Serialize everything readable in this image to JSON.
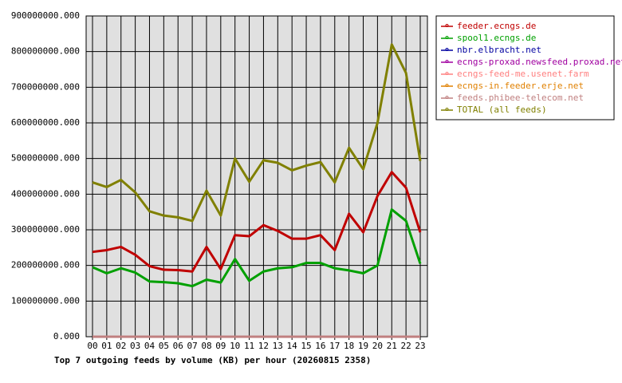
{
  "chart_data": {
    "type": "line",
    "title": "Top 7 outgoing feeds by volume (KB) per hour (20260815 2358)",
    "categories": [
      "00",
      "01",
      "02",
      "03",
      "04",
      "05",
      "06",
      "07",
      "08",
      "09",
      "10",
      "11",
      "12",
      "13",
      "14",
      "15",
      "16",
      "17",
      "18",
      "19",
      "20",
      "21",
      "22",
      "23"
    ],
    "series": [
      {
        "name": "feeder.ecngs.de",
        "color": "#c00000",
        "values": [
          238000000,
          243000000,
          252000000,
          230000000,
          198000000,
          188000000,
          187000000,
          183000000,
          252000000,
          190000000,
          285000000,
          282000000,
          313000000,
          297000000,
          275000000,
          275000000,
          285000000,
          243000000,
          345000000,
          293000000,
          395000000,
          462000000,
          418000000,
          293000000
        ]
      },
      {
        "name": "spool1.ecngs.de",
        "color": "#00a000",
        "values": [
          195000000,
          178000000,
          192000000,
          180000000,
          155000000,
          153000000,
          150000000,
          142000000,
          160000000,
          152000000,
          218000000,
          157000000,
          183000000,
          192000000,
          195000000,
          207000000,
          207000000,
          192000000,
          186000000,
          178000000,
          200000000,
          357000000,
          325000000,
          205000000
        ]
      },
      {
        "name": "nbr.elbracht.net",
        "color": "#0000a0",
        "values": [
          0,
          0,
          0,
          0,
          0,
          0,
          0,
          0,
          0,
          0,
          0,
          0,
          0,
          0,
          0,
          0,
          0,
          0,
          0,
          0,
          0,
          0,
          0,
          0
        ]
      },
      {
        "name": "ecngs-proxad.newsfeed.proxad.net",
        "color": "#a000a0",
        "values": [
          0,
          0,
          0,
          0,
          0,
          0,
          0,
          0,
          0,
          0,
          0,
          0,
          0,
          0,
          0,
          0,
          0,
          0,
          0,
          0,
          0,
          0,
          0,
          0
        ]
      },
      {
        "name": "ecngs-feed-me.usenet.farm",
        "color": "#ff8080",
        "values": [
          0,
          0,
          0,
          0,
          0,
          0,
          0,
          0,
          0,
          0,
          0,
          0,
          0,
          0,
          0,
          0,
          0,
          0,
          0,
          0,
          0,
          0,
          0,
          0
        ]
      },
      {
        "name": "ecngs-in.feeder.erje.net",
        "color": "#e08000",
        "values": [
          0,
          0,
          0,
          0,
          0,
          0,
          0,
          0,
          0,
          0,
          0,
          0,
          0,
          0,
          0,
          0,
          0,
          0,
          0,
          0,
          0,
          0,
          0,
          0
        ]
      },
      {
        "name": "feeds.phibee-telecom.net",
        "color": "#c08080",
        "values": [
          0,
          0,
          0,
          0,
          0,
          0,
          0,
          0,
          0,
          0,
          0,
          0,
          0,
          0,
          0,
          0,
          0,
          0,
          0,
          0,
          0,
          0,
          0,
          0
        ]
      },
      {
        "name": "TOTAL (all feeds)",
        "color": "#808000",
        "values": [
          433000000,
          420000000,
          440000000,
          405000000,
          352000000,
          340000000,
          335000000,
          325000000,
          410000000,
          340000000,
          500000000,
          435000000,
          495000000,
          488000000,
          467000000,
          480000000,
          490000000,
          433000000,
          530000000,
          470000000,
          600000000,
          820000000,
          740000000,
          493000000
        ]
      }
    ],
    "ylim": [
      0,
      900000000
    ],
    "yticks": [
      {
        "value": 0,
        "label": "0.000"
      },
      {
        "value": 100000000,
        "label": "100000000.000"
      },
      {
        "value": 200000000,
        "label": "200000000.000"
      },
      {
        "value": 300000000,
        "label": "300000000.000"
      },
      {
        "value": 400000000,
        "label": "400000000.000"
      },
      {
        "value": 500000000,
        "label": "500000000.000"
      },
      {
        "value": 600000000,
        "label": "600000000.000"
      },
      {
        "value": 700000000,
        "label": "700000000.000"
      },
      {
        "value": 800000000,
        "label": "800000000.000"
      },
      {
        "value": 900000000,
        "label": "900000000.000"
      }
    ],
    "grid": true
  }
}
